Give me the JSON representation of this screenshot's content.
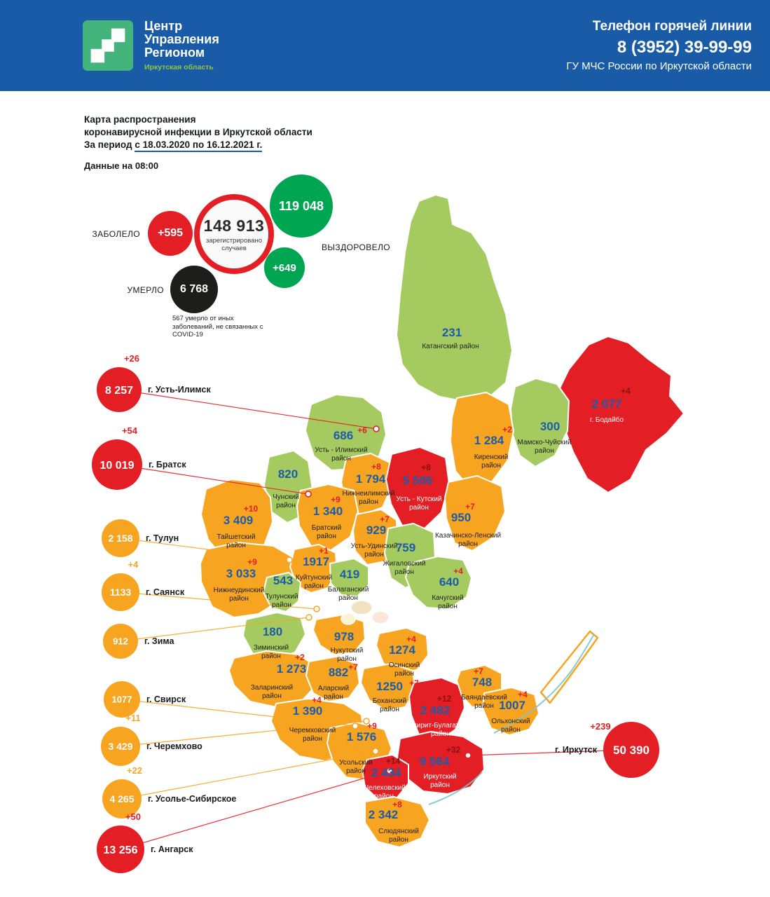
{
  "header": {
    "logo_lines": [
      "Центр",
      "Управления",
      "Регионом"
    ],
    "logo_subtitle": "Иркутская область",
    "hotline_label": "Телефон горячей линии",
    "hotline_number": "8 (3952) 39-99-99",
    "hotline_org": "ГУ МЧС России по Иркутской области"
  },
  "intro": {
    "title_lines": [
      "Карта распространения",
      "коронавирусной инфекции в Иркутской области"
    ],
    "period_prefix": "За период",
    "period_underlined": "с 18.03.2020 по 16.12.2021 г.",
    "as_of": "Данные на 08:00"
  },
  "stats": {
    "sick_label": "ЗАБОЛЕЛО",
    "sick_delta": "+595",
    "total_value": "148 913",
    "total_caption": "зарегистрировано случаев",
    "recovered_value": "119 048",
    "recovered_label": "ВЫЗДОРОВЕЛО",
    "recovered_delta": "+649",
    "died_label": "УМЕРЛО",
    "died_value": "6 768",
    "died_note": "567 умерло от иных заболеваний, не связанных с COVID-19"
  },
  "palette": {
    "header_blue": "#1a5ba8",
    "brand_green": "#43b57c",
    "accent_green_text": "#8dc63f",
    "alert_red": "#e31e24",
    "warn_orange": "#f7a521",
    "calm_green": "#a5cb60",
    "recovered_green": "#00a551",
    "died_black": "#1d1d1b",
    "value_blue": "#1b5ca9",
    "delta_on_red": "#8b1110",
    "water": "#7cc5cc"
  },
  "map": {
    "districts": [
      {
        "id": "katangsky",
        "value": "231",
        "delta": "",
        "name_lines": [
          "Катангский район"
        ],
        "level": "low"
      },
      {
        "id": "bodaibo",
        "value": "2 077",
        "delta": "+4",
        "name_lines": [
          "г. Бодайбо"
        ],
        "level": "high"
      },
      {
        "id": "mamsko-chuysky",
        "value": "300",
        "delta": "",
        "name_lines": [
          "Мамско-Чуйский",
          "район"
        ],
        "level": "low"
      },
      {
        "id": "kirensky",
        "value": "1 284",
        "delta": "+2",
        "name_lines": [
          "Киренский",
          "район"
        ],
        "level": "mid"
      },
      {
        "id": "ust-ilimsky",
        "value": "686",
        "delta": "+6",
        "name_lines": [
          "Усть - Илимский",
          "район"
        ],
        "level": "low"
      },
      {
        "id": "chunsky",
        "value": "820",
        "delta": "",
        "name_lines": [
          "Чунский",
          "район"
        ],
        "level": "low"
      },
      {
        "id": "nizhneilimsky",
        "value": "1 794",
        "delta": "+8",
        "name_lines": [
          "Нижнеилимский",
          "район"
        ],
        "level": "mid"
      },
      {
        "id": "ust-kutsky",
        "value": "5 506",
        "delta": "+8",
        "name_lines": [
          "Усть - Кутский",
          "район"
        ],
        "level": "high"
      },
      {
        "id": "kazachinsko-lensky",
        "value": "950",
        "delta": "+7",
        "name_lines": [
          "Казачинско-Ленский",
          "район"
        ],
        "level": "mid"
      },
      {
        "id": "taishetsky",
        "value": "3 409",
        "delta": "+10",
        "name_lines": [
          "Тайшетский",
          "район"
        ],
        "level": "mid"
      },
      {
        "id": "bratsky",
        "value": "1 340",
        "delta": "+9",
        "name_lines": [
          "Братский",
          "район"
        ],
        "level": "mid"
      },
      {
        "id": "ust-udinsky",
        "value": "929",
        "delta": "+7",
        "name_lines": [
          "Усть-Удинский",
          "район"
        ],
        "level": "mid"
      },
      {
        "id": "zhigalovsky",
        "value": "759",
        "delta": "",
        "name_lines": [
          "Жигаловский",
          "район"
        ],
        "level": "low"
      },
      {
        "id": "nizhneudinsky",
        "value": "3 033",
        "delta": "+9",
        "name_lines": [
          "Нижнеудинский",
          "район"
        ],
        "level": "mid"
      },
      {
        "id": "kuitunsky",
        "value": "1917",
        "delta": "+1",
        "name_lines": [
          "Куйтунский",
          "район"
        ],
        "level": "mid"
      },
      {
        "id": "tulunsky",
        "value": "543",
        "delta": "",
        "name_lines": [
          "Тулунский",
          "район"
        ],
        "level": "low"
      },
      {
        "id": "balagansky",
        "value": "419",
        "delta": "",
        "name_lines": [
          "Балаганский",
          "район"
        ],
        "level": "low"
      },
      {
        "id": "kachugsky",
        "value": "640",
        "delta": "+4",
        "name_lines": [
          "Качугский",
          "район"
        ],
        "level": "low"
      },
      {
        "id": "ziminsky",
        "value": "180",
        "delta": "",
        "name_lines": [
          "Зиминский",
          "район"
        ],
        "level": "low"
      },
      {
        "id": "nukutsky",
        "value": "978",
        "delta": "",
        "name_lines": [
          "Нукутский",
          "район"
        ],
        "level": "mid"
      },
      {
        "id": "osinsky",
        "value": "1274",
        "delta": "+4",
        "name_lines": [
          "Осинский",
          "район"
        ],
        "level": "mid"
      },
      {
        "id": "zalarinsky",
        "value": "1 273",
        "delta": "+2",
        "name_lines": [
          "Заларинский",
          "район"
        ],
        "level": "mid"
      },
      {
        "id": "alarsky",
        "value": "882",
        "delta": "+7",
        "name_lines": [
          "Аларский",
          "район"
        ],
        "level": "mid"
      },
      {
        "id": "bokhansky",
        "value": "1250",
        "delta": "+7",
        "name_lines": [
          "Боханский",
          "район"
        ],
        "level": "mid"
      },
      {
        "id": "ehirit-bulagatsky",
        "value": "2 482",
        "delta": "+12",
        "name_lines": [
          "Эхирит-Булагатский",
          "район"
        ],
        "level": "high"
      },
      {
        "id": "bayandaevsky",
        "value": "748",
        "delta": "+7",
        "name_lines": [
          "Баяндаевский",
          "район"
        ],
        "level": "mid"
      },
      {
        "id": "olkhonsky",
        "value": "1007",
        "delta": "+4",
        "name_lines": [
          "Ольхонский",
          "район"
        ],
        "level": "mid"
      },
      {
        "id": "cheremkhovsky",
        "value": "1 390",
        "delta": "+4",
        "name_lines": [
          "Черемховский",
          "район"
        ],
        "level": "mid"
      },
      {
        "id": "usolsky",
        "value": "1 576",
        "delta": "+9",
        "name_lines": [
          "Усольский",
          "район"
        ],
        "level": "mid"
      },
      {
        "id": "irkutsky",
        "value": "9 564",
        "delta": "+32",
        "name_lines": [
          "Иркутский",
          "район"
        ],
        "level": "high"
      },
      {
        "id": "shelekhovsky",
        "value": "2 434",
        "delta": "+14",
        "name_lines": [
          "Шелеховский",
          "район"
        ],
        "level": "high"
      },
      {
        "id": "slyudyansky",
        "value": "2 342",
        "delta": "+8",
        "name_lines": [
          "Слюдянский",
          "район"
        ],
        "level": "mid"
      }
    ],
    "cities": [
      {
        "id": "ust-ilimsk",
        "value": "8 257",
        "delta": "+26",
        "label": "г. Усть-Илимск",
        "level": "high"
      },
      {
        "id": "bratsk",
        "value": "10 019",
        "delta": "+54",
        "label": "г. Братск",
        "level": "high"
      },
      {
        "id": "tulun",
        "value": "2 158",
        "delta": "",
        "label": "г. Тулун",
        "level": "mid"
      },
      {
        "id": "sayansk",
        "value": "1133",
        "delta": "+4",
        "label": "г. Саянск",
        "level": "mid"
      },
      {
        "id": "zima",
        "value": "912",
        "delta": "",
        "label": "г. Зима",
        "level": "mid"
      },
      {
        "id": "svirsk",
        "value": "1077",
        "delta": "",
        "label": "г. Свирск",
        "level": "mid"
      },
      {
        "id": "cheremkhovo",
        "value": "3 429",
        "delta": "+11",
        "label": "г. Черемхово",
        "level": "mid"
      },
      {
        "id": "usolye-sibirskoye",
        "value": "4 265",
        "delta": "+22",
        "label": "г. Усолье-Сибирское",
        "level": "mid"
      },
      {
        "id": "angarsk",
        "value": "13 256",
        "delta": "+50",
        "label": "г. Ангарск",
        "level": "high"
      },
      {
        "id": "irkutsk",
        "value": "50 390",
        "delta": "+239",
        "label": "г. Иркутск",
        "level": "high"
      }
    ]
  }
}
